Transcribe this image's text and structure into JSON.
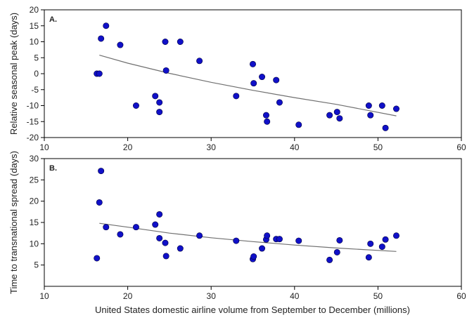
{
  "xlabel": "United States domestic airline volume from September to December (millions)",
  "chart_data": [
    {
      "type": "scatter",
      "panel_label": "A.",
      "title": "",
      "xlabel": "",
      "ylabel": "Relative seasonal peak (days)",
      "xlim": [
        10,
        60
      ],
      "ylim": [
        -20,
        20
      ],
      "xticks": [
        10,
        20,
        30,
        40,
        50,
        60
      ],
      "yticks": [
        -20,
        -15,
        -10,
        -5,
        0,
        5,
        10,
        15,
        20
      ],
      "grid": false,
      "legend": "none",
      "marker_color": "#1010c8",
      "fit_color": "#707070",
      "points": [
        {
          "x": 16.3,
          "y": 0
        },
        {
          "x": 16.6,
          "y": 0
        },
        {
          "x": 16.8,
          "y": 11
        },
        {
          "x": 17.4,
          "y": 15
        },
        {
          "x": 19.1,
          "y": 9
        },
        {
          "x": 21.0,
          "y": -10
        },
        {
          "x": 23.3,
          "y": -7
        },
        {
          "x": 23.8,
          "y": -9
        },
        {
          "x": 23.8,
          "y": -12
        },
        {
          "x": 24.5,
          "y": 10
        },
        {
          "x": 24.6,
          "y": 1
        },
        {
          "x": 26.3,
          "y": 10
        },
        {
          "x": 28.6,
          "y": 4
        },
        {
          "x": 33.0,
          "y": -7
        },
        {
          "x": 35.0,
          "y": 3
        },
        {
          "x": 35.1,
          "y": -3
        },
        {
          "x": 36.1,
          "y": -1
        },
        {
          "x": 36.6,
          "y": -13
        },
        {
          "x": 36.7,
          "y": -15
        },
        {
          "x": 37.8,
          "y": -2
        },
        {
          "x": 38.2,
          "y": -9
        },
        {
          "x": 40.5,
          "y": -16
        },
        {
          "x": 44.2,
          "y": -13
        },
        {
          "x": 45.1,
          "y": -12
        },
        {
          "x": 45.4,
          "y": -14
        },
        {
          "x": 48.9,
          "y": -10
        },
        {
          "x": 49.1,
          "y": -13
        },
        {
          "x": 50.5,
          "y": -10
        },
        {
          "x": 50.9,
          "y": -17
        },
        {
          "x": 52.2,
          "y": -11
        }
      ],
      "fit": {
        "x": [
          16.6,
          20,
          25,
          30,
          35,
          40,
          45,
          52.2
        ],
        "y": [
          5.8,
          3.3,
          0.1,
          -2.7,
          -5.2,
          -7.5,
          -9.6,
          -13.2
        ]
      }
    },
    {
      "type": "scatter",
      "panel_label": "B.",
      "title": "",
      "xlabel": "United States domestic airline volume from September to December (millions)",
      "ylabel": "Time to transnational spread (days)",
      "xlim": [
        10,
        60
      ],
      "ylim": [
        0,
        30
      ],
      "xticks": [
        10,
        20,
        30,
        40,
        50,
        60
      ],
      "yticks": [
        5,
        10,
        15,
        20,
        25,
        30
      ],
      "grid": false,
      "legend": "none",
      "marker_color": "#1010c8",
      "fit_color": "#707070",
      "points": [
        {
          "x": 16.3,
          "y": 6.6
        },
        {
          "x": 16.6,
          "y": 19.7
        },
        {
          "x": 16.8,
          "y": 27.1
        },
        {
          "x": 17.4,
          "y": 13.9
        },
        {
          "x": 19.1,
          "y": 12.2
        },
        {
          "x": 21.0,
          "y": 13.9
        },
        {
          "x": 23.3,
          "y": 14.5
        },
        {
          "x": 23.8,
          "y": 16.9
        },
        {
          "x": 23.8,
          "y": 11.3
        },
        {
          "x": 24.5,
          "y": 10.2
        },
        {
          "x": 24.6,
          "y": 7.1
        },
        {
          "x": 26.3,
          "y": 8.9
        },
        {
          "x": 28.6,
          "y": 11.9
        },
        {
          "x": 33.0,
          "y": 10.7
        },
        {
          "x": 35.0,
          "y": 6.4
        },
        {
          "x": 35.1,
          "y": 7.0
        },
        {
          "x": 36.1,
          "y": 8.9
        },
        {
          "x": 36.6,
          "y": 11.0
        },
        {
          "x": 36.7,
          "y": 11.9
        },
        {
          "x": 37.8,
          "y": 11.1
        },
        {
          "x": 38.2,
          "y": 11.1
        },
        {
          "x": 40.5,
          "y": 10.7
        },
        {
          "x": 44.2,
          "y": 6.2
        },
        {
          "x": 45.1,
          "y": 8.0
        },
        {
          "x": 45.4,
          "y": 10.8
        },
        {
          "x": 48.9,
          "y": 6.8
        },
        {
          "x": 49.1,
          "y": 10.0
        },
        {
          "x": 50.5,
          "y": 9.3
        },
        {
          "x": 50.9,
          "y": 11.0
        },
        {
          "x": 52.2,
          "y": 11.9
        }
      ],
      "fit": {
        "x": [
          16.6,
          20,
          25,
          30,
          35,
          40,
          45,
          52.2
        ],
        "y": [
          14.8,
          13.9,
          12.5,
          11.4,
          10.5,
          9.7,
          9.0,
          8.2
        ]
      }
    }
  ]
}
